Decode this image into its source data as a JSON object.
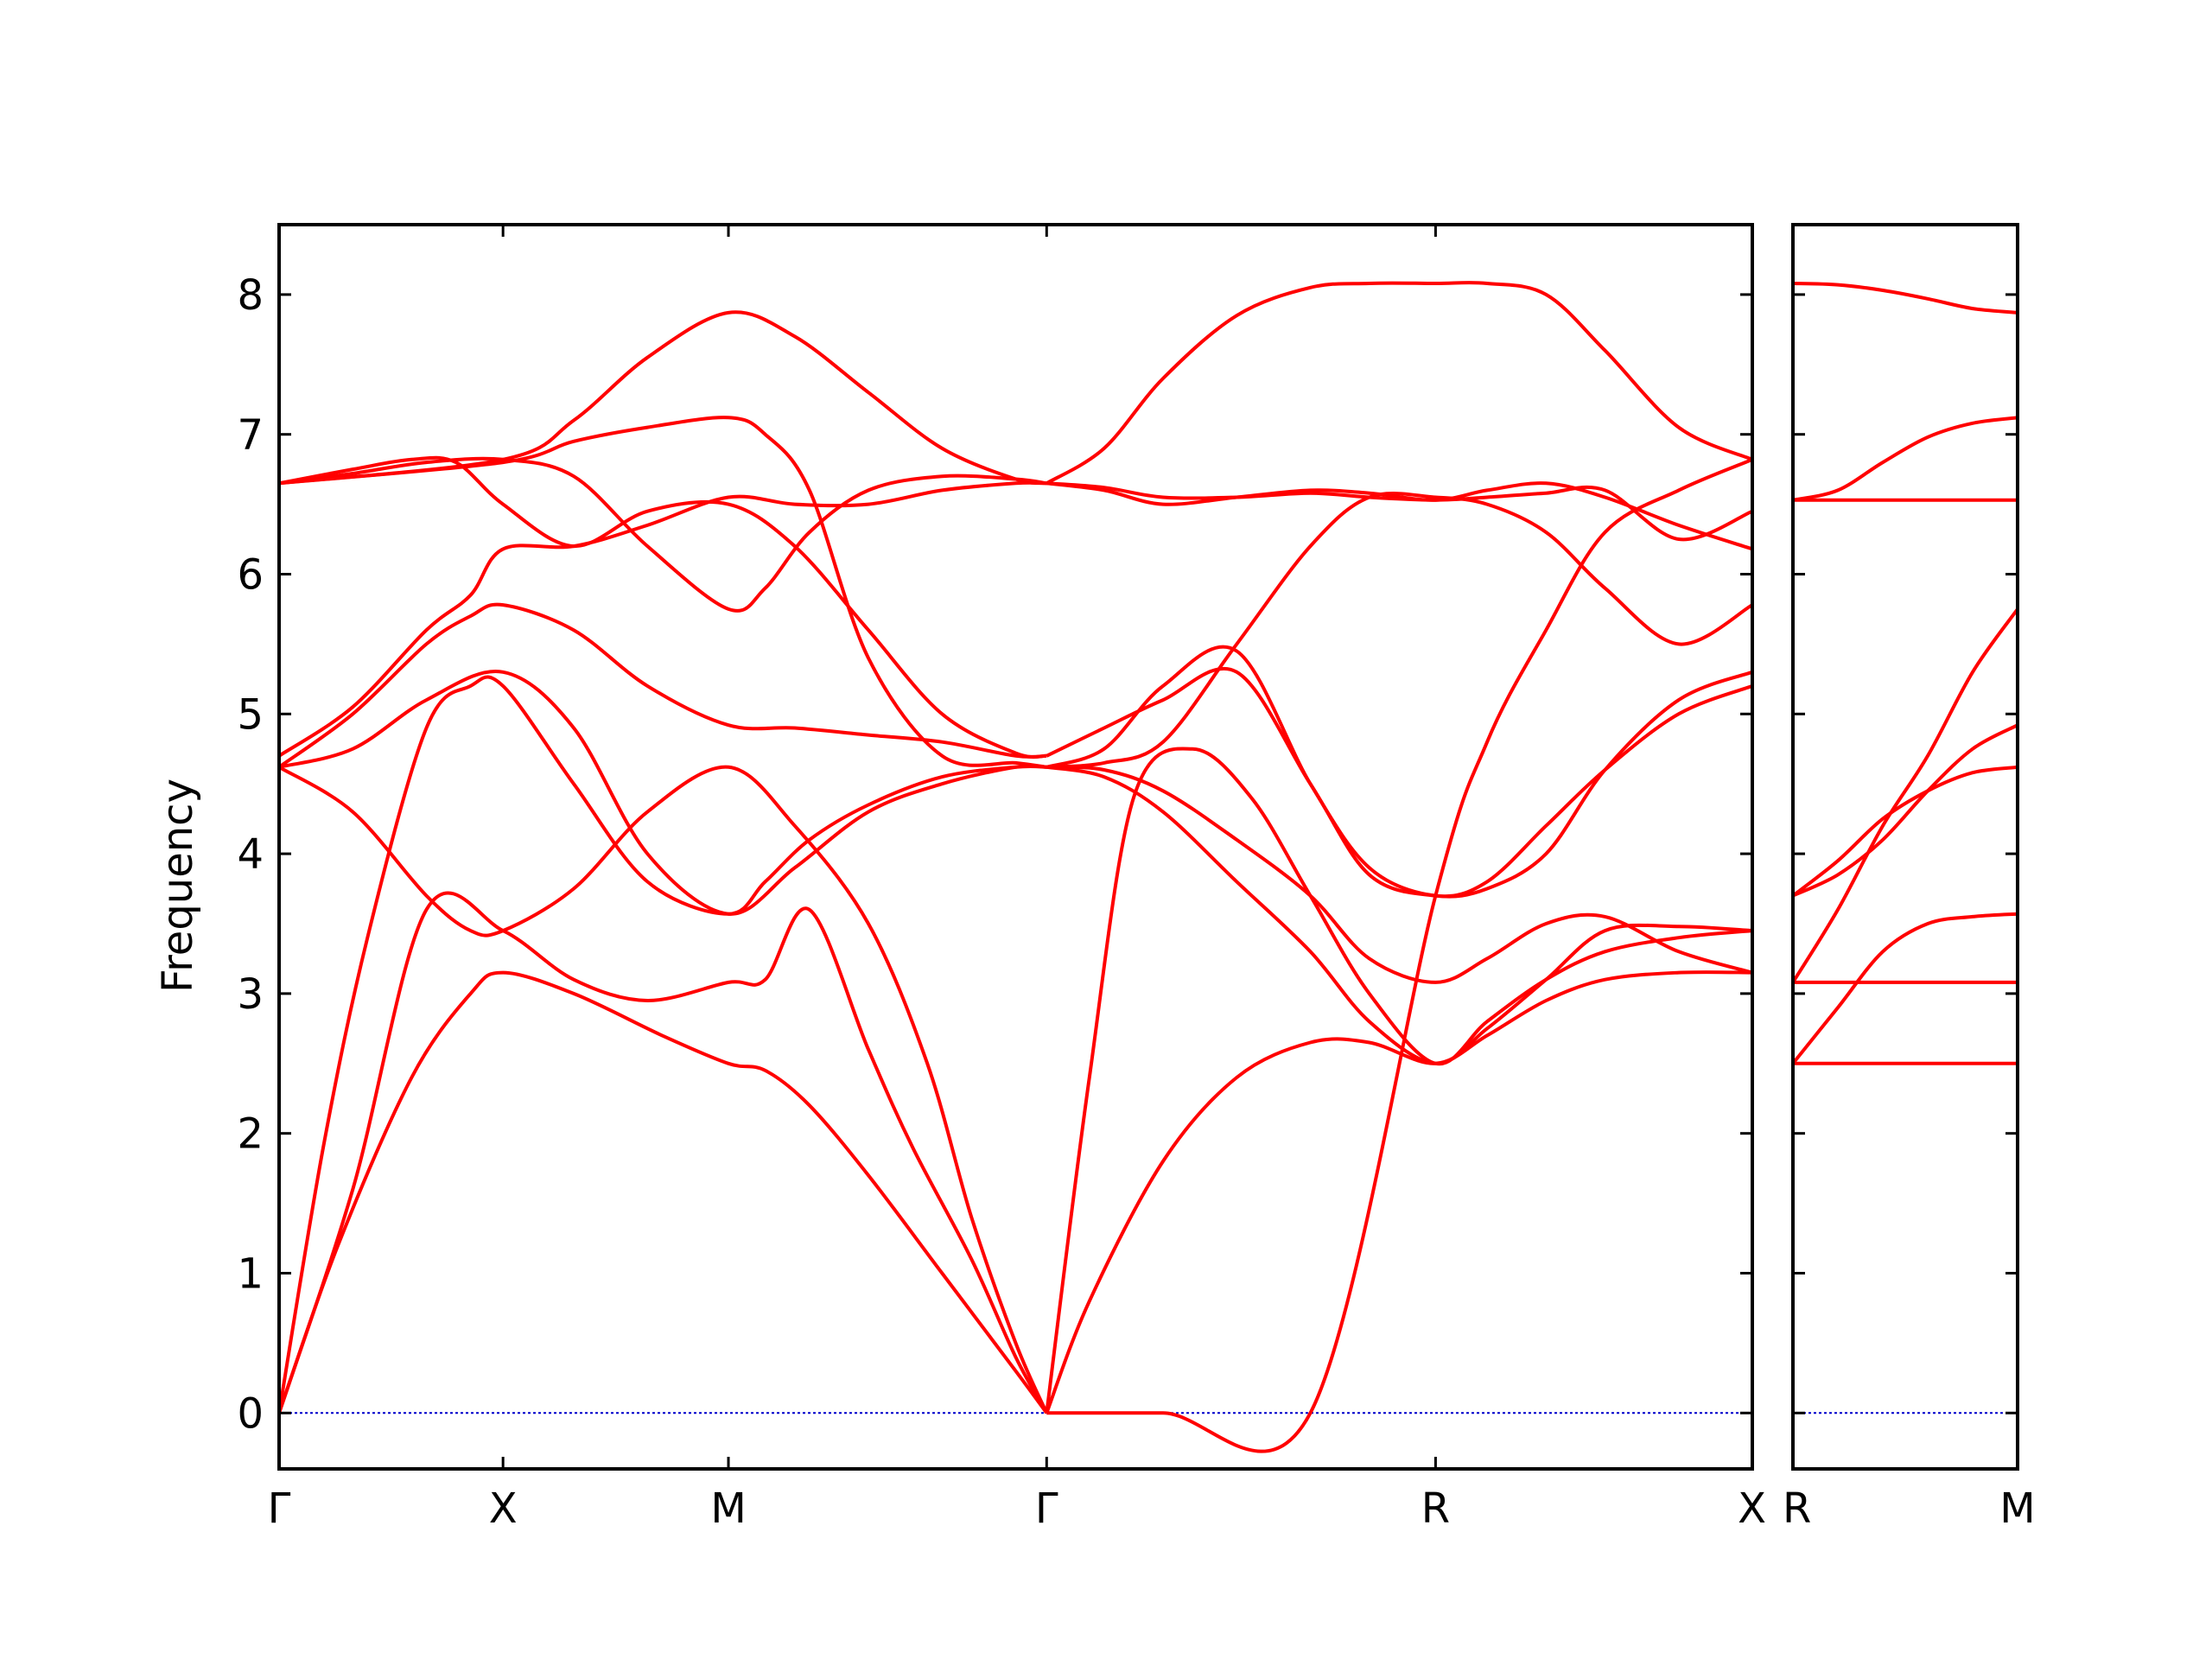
{
  "chart_data": {
    "type": "line",
    "ylabel": "Frequency",
    "ylim": [
      -0.4,
      8.5
    ],
    "yticks": [
      0,
      1,
      2,
      3,
      4,
      5,
      6,
      7,
      8
    ],
    "band_color": "#ff0000",
    "zero_line_color": "#0000cc",
    "panels": [
      {
        "path": [
          "Γ",
          "X",
          "M",
          "Γ",
          "R",
          "X"
        ],
        "labels": [
          "Γ",
          "X",
          "M",
          "Γ",
          "R",
          "X"
        ],
        "x": [
          0.0,
          0.152,
          0.305,
          0.521,
          0.785,
          1.0
        ],
        "series": [
          {
            "x": [
              0.0,
              0.04,
              0.09,
              0.13,
              0.152,
              0.2,
              0.26,
              0.305,
              0.33,
              0.36,
              0.4,
              0.45,
              0.5,
              0.521
            ],
            "values": [
              0.0,
              1.2,
              2.4,
              3.0,
              3.15,
              3.0,
              2.7,
              2.5,
              2.45,
              2.2,
              1.7,
              1.0,
              0.3,
              0.0
            ]
          },
          {
            "x": [
              0.0,
              0.03,
              0.06,
              0.1,
              0.13,
              0.152,
              0.2,
              0.25,
              0.305,
              0.33,
              0.36,
              0.4,
              0.45,
              0.5,
              0.521
            ],
            "values": [
              0.0,
              1.9,
              3.4,
              4.9,
              5.2,
              5.2,
              4.5,
              3.8,
              3.57,
              3.8,
              4.1,
              4.35,
              4.55,
              4.62,
              4.62
            ]
          },
          {
            "x": [
              0.0,
              0.05,
              0.1,
              0.152,
              0.2,
              0.25,
              0.305,
              0.33,
              0.36,
              0.4,
              0.43,
              0.47,
              0.5,
              0.521
            ],
            "values": [
              0.0,
              1.6,
              3.6,
              3.45,
              3.1,
              2.95,
              3.08,
              3.1,
              3.6,
              2.6,
              1.9,
              1.1,
              0.4,
              0.0
            ]
          },
          {
            "x": [
              0.0,
              0.05,
              0.1,
              0.13,
              0.152,
              0.2,
              0.25,
              0.305,
              0.35,
              0.4,
              0.44,
              0.47,
              0.5,
              0.521
            ],
            "values": [
              4.62,
              4.3,
              3.7,
              3.45,
              3.45,
              3.75,
              4.3,
              4.62,
              4.2,
              3.5,
              2.5,
              1.4,
              0.5,
              0.0
            ]
          },
          {
            "x": [
              0.0,
              0.05,
              0.1,
              0.152,
              0.2,
              0.25,
              0.305,
              0.35,
              0.4,
              0.45,
              0.5,
              0.521
            ],
            "values": [
              4.62,
              4.75,
              5.1,
              5.3,
              4.9,
              4.0,
              3.57,
              3.9,
              4.3,
              4.5,
              4.62,
              4.62
            ]
          },
          {
            "x": [
              0.0,
              0.05,
              0.1,
              0.13,
              0.152,
              0.2,
              0.25,
              0.305,
              0.35,
              0.4,
              0.45,
              0.5,
              0.521
            ],
            "values": [
              4.62,
              5.0,
              5.5,
              5.7,
              5.78,
              5.6,
              5.2,
              4.92,
              4.9,
              4.85,
              4.8,
              4.7,
              4.7
            ]
          },
          {
            "x": [
              0.0,
              0.05,
              0.1,
              0.13,
              0.152,
              0.2,
              0.25,
              0.305,
              0.35,
              0.4,
              0.45,
              0.5,
              0.521
            ],
            "values": [
              4.7,
              5.05,
              5.6,
              5.85,
              6.18,
              6.2,
              6.35,
              6.55,
              6.5,
              6.5,
              6.6,
              6.65,
              6.65
            ]
          },
          {
            "x": [
              0.0,
              0.05,
              0.09,
              0.12,
              0.152,
              0.2,
              0.25,
              0.305,
              0.35,
              0.4,
              0.45,
              0.5,
              0.521
            ],
            "values": [
              6.65,
              6.75,
              6.82,
              6.8,
              6.5,
              6.2,
              6.45,
              6.5,
              6.2,
              5.6,
              5.0,
              4.72,
              4.7
            ]
          },
          {
            "x": [
              0.0,
              0.05,
              0.1,
              0.152,
              0.2,
              0.25,
              0.305,
              0.33,
              0.36,
              0.4,
              0.45,
              0.5,
              0.521
            ],
            "values": [
              6.65,
              6.72,
              6.8,
              6.82,
              6.7,
              6.2,
              5.75,
              5.9,
              6.3,
              6.6,
              6.7,
              6.68,
              6.65
            ]
          },
          {
            "x": [
              0.0,
              0.152,
              0.2,
              0.25,
              0.305,
              0.35,
              0.4,
              0.45,
              0.5,
              0.521
            ],
            "values": [
              6.65,
              6.82,
              7.1,
              7.55,
              7.87,
              7.7,
              7.3,
              6.9,
              6.68,
              6.65
            ]
          },
          {
            "x": [
              0.0,
              0.152,
              0.2,
              0.25,
              0.305,
              0.33,
              0.36,
              0.4,
              0.45,
              0.5,
              0.521
            ],
            "values": [
              6.65,
              6.8,
              6.95,
              7.05,
              7.12,
              7.0,
              6.6,
              5.4,
              4.7,
              4.65,
              4.62
            ]
          },
          {
            "x": [
              0.521,
              0.55,
              0.6,
              0.65,
              0.7,
              0.74,
              0.785,
              0.82,
              0.86,
              0.9,
              0.95,
              1.0
            ],
            "values": [
              0.0,
              0.8,
              1.8,
              2.4,
              2.65,
              2.65,
              2.5,
              2.7,
              2.95,
              3.1,
              3.15,
              3.15
            ]
          },
          {
            "x": [
              0.521,
              0.55,
              0.58,
              0.62,
              0.66,
              0.7,
              0.74,
              0.785,
              0.82,
              0.86,
              0.9,
              0.95,
              1.0
            ],
            "values": [
              0.0,
              2.4,
              4.4,
              4.75,
              4.4,
              3.7,
              3.0,
              2.5,
              2.8,
              3.1,
              3.3,
              3.4,
              3.45
            ]
          },
          {
            "x": [
              0.521,
              0.56,
              0.6,
              0.65,
              0.7,
              0.74,
              0.785,
              0.82,
              0.86,
              0.9,
              0.95,
              1.0
            ],
            "values": [
              4.62,
              4.55,
              4.3,
              3.8,
              3.3,
              2.8,
              2.5,
              2.75,
              3.1,
              3.45,
              3.48,
              3.45
            ]
          },
          {
            "x": [
              0.521,
              0.56,
              0.6,
              0.65,
              0.7,
              0.74,
              0.785,
              0.82,
              0.86,
              0.9,
              0.95,
              1.0
            ],
            "values": [
              4.62,
              4.6,
              4.45,
              4.1,
              3.7,
              3.25,
              3.08,
              3.25,
              3.5,
              3.55,
              3.3,
              3.15
            ]
          },
          {
            "x": [
              0.521,
              0.56,
              0.6,
              0.65,
              0.7,
              0.74,
              0.785,
              0.82,
              0.86,
              0.9,
              0.95,
              1.0
            ],
            "values": [
              4.7,
              4.9,
              5.1,
              5.3,
              4.5,
              3.85,
              3.7,
              3.75,
              4.0,
              4.6,
              5.1,
              5.3
            ]
          },
          {
            "x": [
              0.521,
              0.56,
              0.6,
              0.65,
              0.7,
              0.74,
              0.785,
              0.82,
              0.86,
              0.9,
              0.95,
              1.0
            ],
            "values": [
              4.62,
              4.75,
              5.2,
              5.45,
              4.5,
              3.9,
              3.7,
              3.8,
              4.2,
              4.6,
              5.0,
              5.2
            ]
          },
          {
            "x": [
              0.521,
              0.56,
              0.6,
              0.65,
              0.7,
              0.74,
              0.785,
              0.82,
              0.86,
              0.9,
              0.95,
              1.0
            ],
            "values": [
              4.62,
              4.65,
              4.8,
              5.5,
              6.2,
              6.55,
              6.55,
              6.5,
              6.3,
              5.9,
              5.5,
              5.78
            ]
          },
          {
            "x": [
              0.521,
              0.56,
              0.6,
              0.65,
              0.7,
              0.74,
              0.785,
              0.82,
              0.86,
              0.9,
              0.95,
              1.0
            ],
            "values": [
              6.65,
              6.6,
              6.5,
              6.55,
              6.6,
              6.58,
              6.53,
              6.6,
              6.65,
              6.55,
              6.35,
              6.18
            ]
          },
          {
            "x": [
              0.521,
              0.56,
              0.6,
              0.65,
              0.7,
              0.74,
              0.785,
              0.82,
              0.86,
              0.9,
              0.95,
              1.0
            ],
            "values": [
              6.65,
              6.62,
              6.55,
              6.55,
              6.58,
              6.55,
              6.53,
              6.55,
              6.58,
              6.6,
              6.25,
              6.45
            ]
          },
          {
            "x": [
              0.521,
              0.6,
              0.7,
              0.785,
              0.82,
              0.86,
              0.9,
              0.95,
              1.0
            ],
            "values": [
              0.0,
              0.0,
              0.0,
              3.7,
              4.8,
              5.6,
              6.3,
              6.6,
              6.82
            ]
          },
          {
            "x": [
              0.521,
              0.56,
              0.6,
              0.65,
              0.7,
              0.74,
              0.785,
              0.82,
              0.86,
              0.9,
              0.95,
              1.0
            ],
            "values": [
              6.65,
              6.9,
              7.4,
              7.85,
              8.05,
              8.08,
              8.08,
              8.08,
              8.0,
              7.6,
              7.05,
              6.82
            ]
          }
        ]
      },
      {
        "path": [
          "R",
          "M"
        ],
        "labels": [
          "R",
          "M"
        ],
        "x": [
          0.0,
          1.0
        ],
        "series": [
          {
            "x": [
              0.0,
              1.0
            ],
            "values": [
              2.5,
              2.5
            ]
          },
          {
            "x": [
              0.0,
              0.2,
              0.4,
              0.6,
              0.8,
              1.0
            ],
            "values": [
              2.5,
              2.9,
              3.3,
              3.5,
              3.55,
              3.57
            ]
          },
          {
            "x": [
              0.0,
              1.0
            ],
            "values": [
              3.08,
              3.08
            ]
          },
          {
            "x": [
              0.0,
              0.2,
              0.4,
              0.6,
              0.8,
              1.0
            ],
            "values": [
              3.08,
              3.6,
              4.2,
              4.7,
              5.3,
              5.75
            ]
          },
          {
            "x": [
              0.0,
              0.2,
              0.4,
              0.6,
              0.8,
              1.0
            ],
            "values": [
              3.7,
              3.85,
              4.1,
              4.45,
              4.75,
              4.92
            ]
          },
          {
            "x": [
              0.0,
              0.2,
              0.4,
              0.6,
              0.8,
              1.0
            ],
            "values": [
              3.7,
              3.95,
              4.25,
              4.45,
              4.58,
              4.62
            ]
          },
          {
            "x": [
              0.0,
              1.0
            ],
            "values": [
              6.53,
              6.53
            ]
          },
          {
            "x": [
              0.0,
              0.2,
              0.4,
              0.6,
              0.8,
              1.0
            ],
            "values": [
              6.53,
              6.6,
              6.8,
              6.98,
              7.08,
              7.12
            ]
          },
          {
            "x": [
              0.0,
              0.2,
              0.4,
              0.6,
              0.8,
              1.0
            ],
            "values": [
              8.08,
              8.07,
              8.03,
              7.97,
              7.9,
              7.87
            ]
          }
        ]
      }
    ]
  }
}
